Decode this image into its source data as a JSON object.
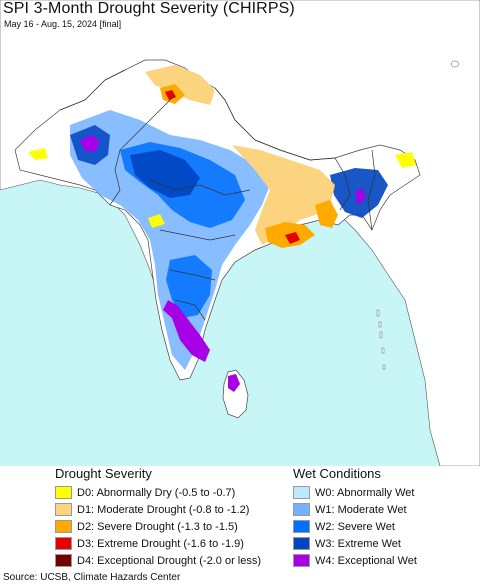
{
  "map": {
    "title": "SPI 3-Month Drought Severity (CHIRPS)",
    "date_range": "May 16 - Aug. 15, 2024 [final]",
    "colors": {
      "ocean": "#c8f5f5",
      "land_outside": "#ffffff",
      "land_neutral": "#ffffff",
      "borders": "#333333"
    }
  },
  "legend": {
    "drought": {
      "heading": "Drought Severity",
      "items": [
        {
          "label": "D0: Abnormally Dry (-0.5 to -0.7)",
          "color": "#ffff00"
        },
        {
          "label": "D1: Moderate Drought (-0.8 to -1.2)",
          "color": "#fcd37f"
        },
        {
          "label": "D2: Severe Drought (-1.3 to -1.5)",
          "color": "#ffaa00"
        },
        {
          "label": "D3: Extreme Drought (-1.6 to -1.9)",
          "color": "#e60000"
        },
        {
          "label": "D4: Exceptional Drought (-2.0 or less)",
          "color": "#730000"
        }
      ]
    },
    "wet": {
      "heading": "Wet Conditions",
      "items": [
        {
          "label": "W0: Abnormally Wet",
          "color": "#bee8ff"
        },
        {
          "label": "W1: Moderate Wet",
          "color": "#73b2ff"
        },
        {
          "label": "W2: Severe Wet",
          "color": "#0070ff"
        },
        {
          "label": "W3: Extreme Wet",
          "color": "#0044c0"
        },
        {
          "label": "W4: Exceptional Wet",
          "color": "#a800e6"
        }
      ]
    }
  },
  "footer": {
    "source": "Source: UCSB, Climate Hazards Center"
  }
}
